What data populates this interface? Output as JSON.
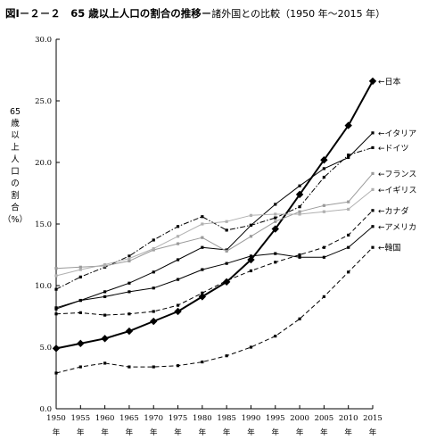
{
  "title": {
    "main": "図Ⅰ－２－２　65 歳以上人口の割合の推移－",
    "sub": "諸外国との比較（1950 年～2015 年）"
  },
  "chart_data": {
    "type": "line",
    "title": "図Ⅰ－２－２　65 歳以上人口の割合の推移－諸外国との比較（1950 年～2015 年）",
    "ylabel": "65歳以上人口の割合（%）",
    "ylabel_chars": [
      "65",
      "歳",
      "以",
      "上",
      "人",
      "口",
      "の",
      "割",
      "合",
      "（%）"
    ],
    "ylim": [
      0,
      30
    ],
    "yticks": [
      "0.0",
      "5.0",
      "10.0",
      "15.0",
      "20.0",
      "25.0",
      "30.0"
    ],
    "ytick_values": [
      0,
      5,
      10,
      15,
      20,
      25,
      30
    ],
    "x": [
      1950,
      1955,
      1960,
      1965,
      1970,
      1975,
      1980,
      1985,
      1990,
      1995,
      2000,
      2005,
      2010,
      2015
    ],
    "xtick_unit": "年",
    "grid": false,
    "legend_placement": "right, labels at line ends",
    "series": [
      {
        "name": "日本",
        "style": "solid",
        "width": 2,
        "marker": "diamond",
        "color": "#000000",
        "values": [
          4.9,
          5.3,
          5.7,
          6.3,
          7.1,
          7.9,
          9.1,
          10.3,
          12.1,
          14.6,
          17.4,
          20.2,
          23.0,
          26.6
        ]
      },
      {
        "name": "イタリア",
        "style": "solid",
        "width": 1,
        "marker": "square",
        "color": "#000000",
        "values": [
          8.1,
          8.8,
          9.5,
          10.2,
          11.1,
          12.1,
          13.1,
          12.9,
          14.9,
          16.6,
          18.1,
          19.5,
          20.4,
          22.4
        ]
      },
      {
        "name": "ドイツ",
        "style": "dashdot",
        "width": 1,
        "marker": "square",
        "color": "#000000",
        "values": [
          9.7,
          10.7,
          11.5,
          12.4,
          13.7,
          14.8,
          15.6,
          14.5,
          14.9,
          15.5,
          16.4,
          18.8,
          20.6,
          21.2
        ]
      },
      {
        "name": "フランス",
        "style": "solid",
        "width": 1,
        "marker": "square",
        "color": "#9a9a9a",
        "values": [
          11.4,
          11.5,
          11.6,
          12.0,
          12.9,
          13.4,
          13.9,
          12.8,
          14.0,
          15.2,
          16.0,
          16.5,
          16.8,
          19.1
        ]
      },
      {
        "name": "イギリス",
        "style": "solid",
        "width": 1,
        "marker": "square",
        "color": "#b0b0b0",
        "values": [
          10.8,
          11.3,
          11.7,
          12.2,
          13.0,
          14.0,
          15.0,
          15.2,
          15.7,
          15.8,
          15.8,
          16.0,
          16.2,
          17.8
        ]
      },
      {
        "name": "カナダ",
        "style": "dashed",
        "width": 1,
        "marker": "square",
        "color": "#000000",
        "values": [
          7.7,
          7.8,
          7.6,
          7.7,
          7.9,
          8.4,
          9.4,
          10.4,
          11.2,
          11.9,
          12.5,
          13.1,
          14.1,
          16.1
        ]
      },
      {
        "name": "アメリカ",
        "style": "solid",
        "width": 1,
        "marker": "square",
        "color": "#000000",
        "values": [
          8.2,
          8.8,
          9.1,
          9.5,
          9.8,
          10.5,
          11.3,
          11.8,
          12.4,
          12.6,
          12.3,
          12.3,
          13.1,
          14.8
        ]
      },
      {
        "name": "韓国",
        "style": "dashed",
        "width": 1,
        "marker": "square",
        "color": "#000000",
        "values": [
          2.9,
          3.4,
          3.7,
          3.4,
          3.4,
          3.5,
          3.8,
          4.3,
          5.0,
          5.9,
          7.3,
          9.1,
          11.1,
          13.1
        ]
      }
    ],
    "legend_labels": [
      {
        "series": "日本",
        "text": "←日本"
      },
      {
        "series": "イタリア",
        "text": "←イタリア"
      },
      {
        "series": "ドイツ",
        "text": "←ドイツ"
      },
      {
        "series": "フランス",
        "text": "←フランス"
      },
      {
        "series": "イギリス",
        "text": "←イギリス"
      },
      {
        "series": "カナダ",
        "text": "←カナダ"
      },
      {
        "series": "アメリカ",
        "text": "←アメリカ"
      },
      {
        "series": "韓国",
        "text": "←韓国"
      }
    ]
  }
}
